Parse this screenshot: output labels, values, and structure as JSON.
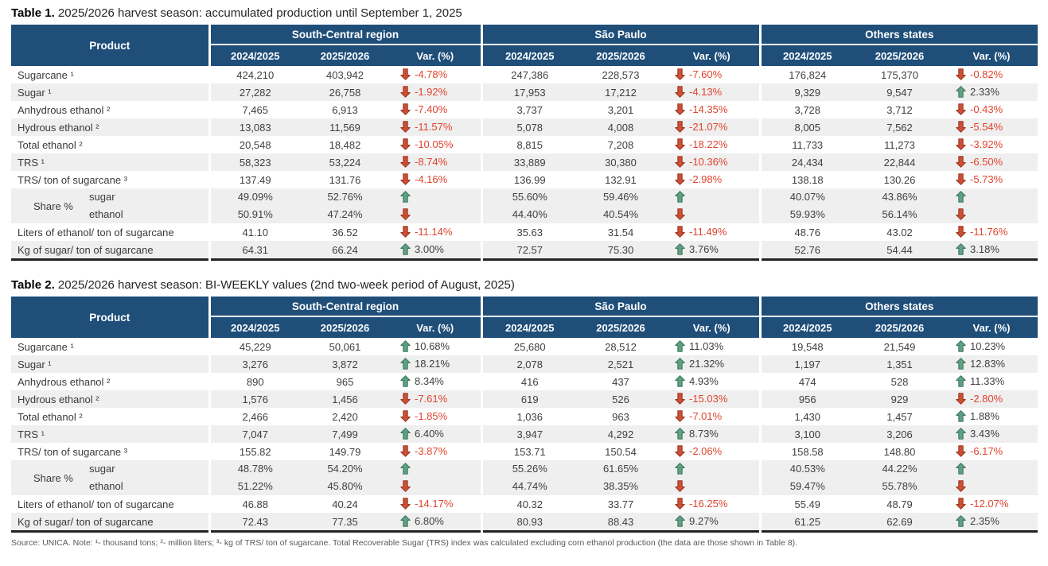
{
  "colors": {
    "header_bg": "#1F4E79",
    "header_text": "#ffffff",
    "stripe": "#EFEFEF",
    "body_text": "#404040",
    "negative_text": "#E0442E",
    "arrow_up_fill": "#5FA083",
    "arrow_up_stroke": "#3E7760",
    "arrow_down_fill": "#CC4F35",
    "arrow_down_stroke": "#9C3723",
    "table_bottom_border": "#222222"
  },
  "icons": {
    "up": "up-arrow-icon",
    "down": "down-arrow-icon"
  },
  "footer": "Source: UNICA. Note: ¹- thousand tons; ²- million liters; ³- kg of TRS/ ton of sugarcane. Total Recoverable Sugar (TRS) index was calculated excluding corn ethanol production (the data are those shown in Table 8).",
  "tables": [
    {
      "title_bold": "Table 1.",
      "title_rest": " 2025/2026 harvest season: accumulated production until September 1, 2025",
      "header": {
        "product": "Product",
        "groups": [
          "South-Central region",
          "São Paulo",
          "Others states"
        ],
        "subcols": [
          "2024/2025",
          "2025/2026",
          "Var. (%)"
        ]
      },
      "rows": [
        {
          "label": "Sugarcane ¹",
          "groups": [
            [
              "424,210",
              "403,942",
              "-4.78%"
            ],
            [
              "247,386",
              "228,573",
              "-7.60%"
            ],
            [
              "176,824",
              "175,370",
              "-0.82%"
            ]
          ]
        },
        {
          "label": "Sugar ¹",
          "groups": [
            [
              "27,282",
              "26,758",
              "-1.92%"
            ],
            [
              "17,953",
              "17,212",
              "-4.13%"
            ],
            [
              "9,329",
              "9,547",
              "2.33%"
            ]
          ]
        },
        {
          "label": "Anhydrous ethanol ²",
          "groups": [
            [
              "7,465",
              "6,913",
              "-7.40%"
            ],
            [
              "3,737",
              "3,201",
              "-14.35%"
            ],
            [
              "3,728",
              "3,712",
              "-0.43%"
            ]
          ]
        },
        {
          "label": "Hydrous ethanol ²",
          "groups": [
            [
              "13,083",
              "11,569",
              "-11.57%"
            ],
            [
              "5,078",
              "4,008",
              "-21.07%"
            ],
            [
              "8,005",
              "7,562",
              "-5.54%"
            ]
          ]
        },
        {
          "label": "Total ethanol ²",
          "groups": [
            [
              "20,548",
              "18,482",
              "-10.05%"
            ],
            [
              "8,815",
              "7,208",
              "-18.22%"
            ],
            [
              "11,733",
              "11,273",
              "-3.92%"
            ]
          ]
        },
        {
          "label": "TRS ¹",
          "groups": [
            [
              "58,323",
              "53,224",
              "-8.74%"
            ],
            [
              "33,889",
              "30,380",
              "-10.36%"
            ],
            [
              "24,434",
              "22,844",
              "-6.50%"
            ]
          ]
        },
        {
          "label": "TRS/ ton of sugarcane ³",
          "groups": [
            [
              "137.49",
              "131.76",
              "-4.16%"
            ],
            [
              "136.99",
              "132.91",
              "-2.98%"
            ],
            [
              "138.18",
              "130.26",
              "-5.73%"
            ]
          ]
        },
        {
          "share": "Share %",
          "sub": [
            {
              "label": "sugar",
              "dir": "up",
              "vals": [
                [
                  "49.09%",
                  "52.76%"
                ],
                [
                  "55.60%",
                  "59.46%"
                ],
                [
                  "40.07%",
                  "43.86%"
                ]
              ]
            },
            {
              "label": "ethanol",
              "dir": "down",
              "vals": [
                [
                  "50.91%",
                  "47.24%"
                ],
                [
                  "44.40%",
                  "40.54%"
                ],
                [
                  "59.93%",
                  "56.14%"
                ]
              ]
            }
          ]
        },
        {
          "label": "Liters of ethanol/ ton of sugarcane",
          "groups": [
            [
              "41.10",
              "36.52",
              "-11.14%"
            ],
            [
              "35.63",
              "31.54",
              "-11.49%"
            ],
            [
              "48.76",
              "43.02",
              "-11.76%"
            ]
          ]
        },
        {
          "label": "Kg of sugar/ ton of sugarcane",
          "groups": [
            [
              "64.31",
              "66.24",
              "3.00%"
            ],
            [
              "72.57",
              "75.30",
              "3.76%"
            ],
            [
              "52.76",
              "54.44",
              "3.18%"
            ]
          ]
        }
      ]
    },
    {
      "title_bold": "Table 2.",
      "title_rest": " 2025/2026 harvest season: BI-WEEKLY values (2nd two-week period of August, 2025)",
      "header": {
        "product": "Product",
        "groups": [
          "South-Central region",
          "São Paulo",
          "Others states"
        ],
        "subcols": [
          "2024/2025",
          "2025/2026",
          "Var. (%)"
        ]
      },
      "rows": [
        {
          "label": "Sugarcane ¹",
          "groups": [
            [
              "45,229",
              "50,061",
              "10.68%"
            ],
            [
              "25,680",
              "28,512",
              "11.03%"
            ],
            [
              "19,548",
              "21,549",
              "10.23%"
            ]
          ]
        },
        {
          "label": "Sugar ¹",
          "groups": [
            [
              "3,276",
              "3,872",
              "18.21%"
            ],
            [
              "2,078",
              "2,521",
              "21.32%"
            ],
            [
              "1,197",
              "1,351",
              "12.83%"
            ]
          ]
        },
        {
          "label": "Anhydrous ethanol ²",
          "groups": [
            [
              "890",
              "965",
              "8.34%"
            ],
            [
              "416",
              "437",
              "4.93%"
            ],
            [
              "474",
              "528",
              "11.33%"
            ]
          ]
        },
        {
          "label": "Hydrous ethanol ²",
          "groups": [
            [
              "1,576",
              "1,456",
              "-7.61%"
            ],
            [
              "619",
              "526",
              "-15.03%"
            ],
            [
              "956",
              "929",
              "-2.80%"
            ]
          ]
        },
        {
          "label": "Total ethanol ²",
          "groups": [
            [
              "2,466",
              "2,420",
              "-1.85%"
            ],
            [
              "1,036",
              "963",
              "-7.01%"
            ],
            [
              "1,430",
              "1,457",
              "1.88%"
            ]
          ]
        },
        {
          "label": "TRS ¹",
          "groups": [
            [
              "7,047",
              "7,499",
              "6.40%"
            ],
            [
              "3,947",
              "4,292",
              "8.73%"
            ],
            [
              "3,100",
              "3,206",
              "3.43%"
            ]
          ]
        },
        {
          "label": "TRS/ ton of sugarcane ³",
          "groups": [
            [
              "155.82",
              "149.79",
              "-3.87%"
            ],
            [
              "153.71",
              "150.54",
              "-2.06%"
            ],
            [
              "158.58",
              "148.80",
              "-6.17%"
            ]
          ]
        },
        {
          "share": "Share %",
          "sub": [
            {
              "label": "sugar",
              "dir": "up",
              "vals": [
                [
                  "48.78%",
                  "54.20%"
                ],
                [
                  "55.26%",
                  "61.65%"
                ],
                [
                  "40.53%",
                  "44.22%"
                ]
              ]
            },
            {
              "label": "ethanol",
              "dir": "down",
              "vals": [
                [
                  "51.22%",
                  "45.80%"
                ],
                [
                  "44.74%",
                  "38.35%"
                ],
                [
                  "59.47%",
                  "55.78%"
                ]
              ]
            }
          ]
        },
        {
          "label": "Liters of ethanol/ ton of sugarcane",
          "groups": [
            [
              "46.88",
              "40.24",
              "-14.17%"
            ],
            [
              "40.32",
              "33.77",
              "-16.25%"
            ],
            [
              "55.49",
              "48.79",
              "-12.07%"
            ]
          ]
        },
        {
          "label": "Kg of sugar/ ton of sugarcane",
          "groups": [
            [
              "72.43",
              "77.35",
              "6.80%"
            ],
            [
              "80.93",
              "88.43",
              "9.27%"
            ],
            [
              "61.25",
              "62.69",
              "2.35%"
            ]
          ]
        }
      ]
    }
  ]
}
